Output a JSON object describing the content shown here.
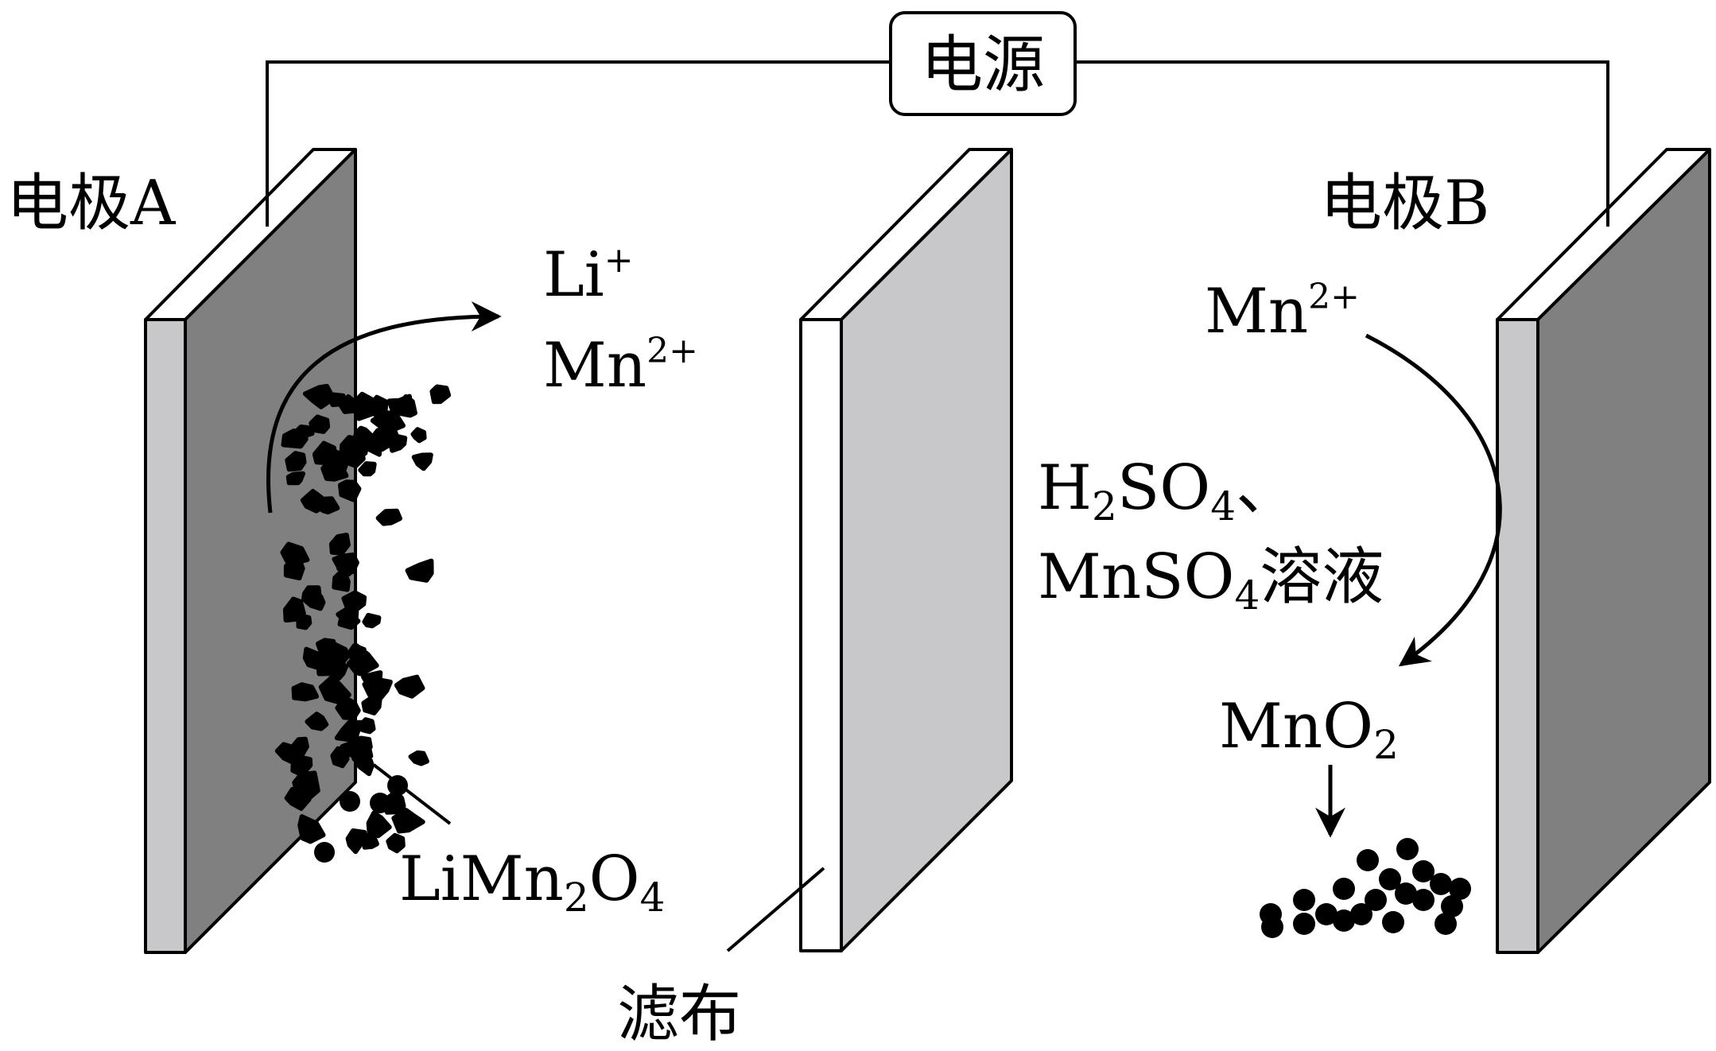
{
  "colors": {
    "plate_front": "#808080",
    "plate_side": "#c8c8ca",
    "filter_front": "#c8c8ca",
    "filter_side": "#ffffff",
    "stroke": "#000000",
    "background": "#ffffff"
  },
  "power_source": {
    "label": "电源"
  },
  "electrode_a": {
    "label": "电极A"
  },
  "electrode_b": {
    "label": "电极B"
  },
  "left_ions": {
    "li": {
      "base": "Li",
      "sup": "+"
    },
    "mn": {
      "base": "Mn",
      "sup": "2+"
    }
  },
  "right_ion": {
    "base": "Mn",
    "sup": "2+"
  },
  "deposit_left": {
    "t1": "LiMn",
    "s1": "2",
    "t2": "O",
    "s2": "4"
  },
  "solution": {
    "line1": {
      "t1": "H",
      "s1": "2",
      "t2": "SO",
      "s2": "4",
      "t3": "、"
    },
    "line2": {
      "t1": "MnSO",
      "s1": "4",
      "t2": "溶液"
    }
  },
  "product": {
    "t1": "MnO",
    "s1": "2"
  },
  "filter_cloth": {
    "label": "滤布"
  }
}
